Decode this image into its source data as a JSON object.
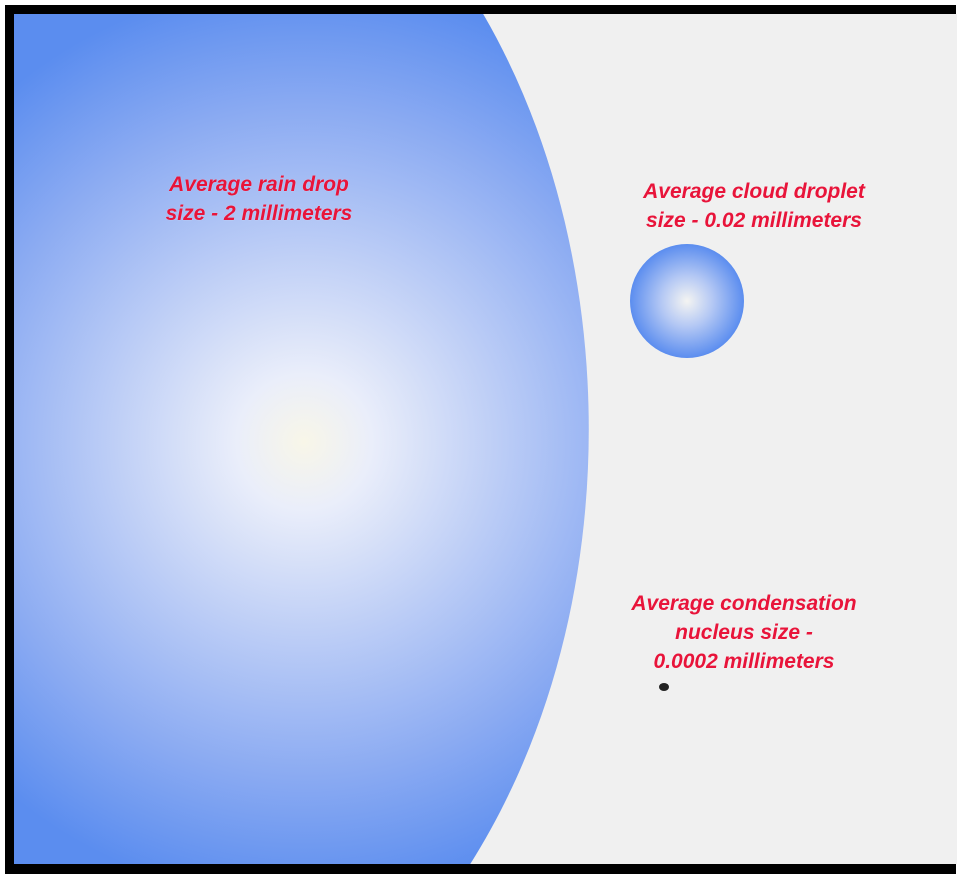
{
  "labels": {
    "rain_drop": "Average rain drop\nsize - 2 millimeters",
    "cloud_droplet": "Average cloud droplet\nsize - 0.02 millimeters",
    "condensation_nucleus": "Average condensation\nnucleus size -\n0.0002 millimeters"
  },
  "colors": {
    "background": "#f0f0f0",
    "frame": "#000000",
    "drop_blue": "#5b8def",
    "drop_highlight": "#f8f6e8",
    "label_red": "#e8143a",
    "nucleus": "#222222"
  }
}
